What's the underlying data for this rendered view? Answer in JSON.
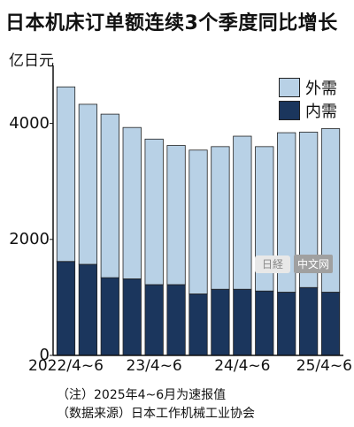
{
  "chart_data": {
    "type": "bar",
    "stacked": true,
    "title": "日本机床订单额连续3个季度同比增长",
    "ylabel": "亿日元",
    "ylim": [
      0,
      5000
    ],
    "yticks": [
      0,
      2000,
      4000
    ],
    "x": [
      "2022/4~6",
      "",
      "",
      "",
      "23/4~6",
      "",
      "",
      "",
      "24/4~6",
      "",
      "",
      "",
      "25/4~6"
    ],
    "xtick_labels": [
      "2022/4~6",
      "23/4~6",
      "24/4~6",
      "25/4~6"
    ],
    "series": [
      {
        "name": "内需",
        "color": "#1b365d",
        "values": [
          1620,
          1570,
          1340,
          1320,
          1220,
          1220,
          1060,
          1140,
          1140,
          1110,
          1090,
          1170,
          1090
        ]
      },
      {
        "name": "外需",
        "color": "#b8d1e6",
        "values": [
          3010,
          2760,
          2820,
          2610,
          2510,
          2400,
          2480,
          2460,
          2640,
          2490,
          2750,
          2680,
          2820
        ]
      }
    ],
    "legend": [
      "外需",
      "内需"
    ],
    "legend_position": "top-right",
    "grid": false,
    "notes": [
      "（注）2025年4~6月为速报值",
      "（数据来源）日本工作机械工业协会"
    ],
    "watermark": "中文网"
  }
}
